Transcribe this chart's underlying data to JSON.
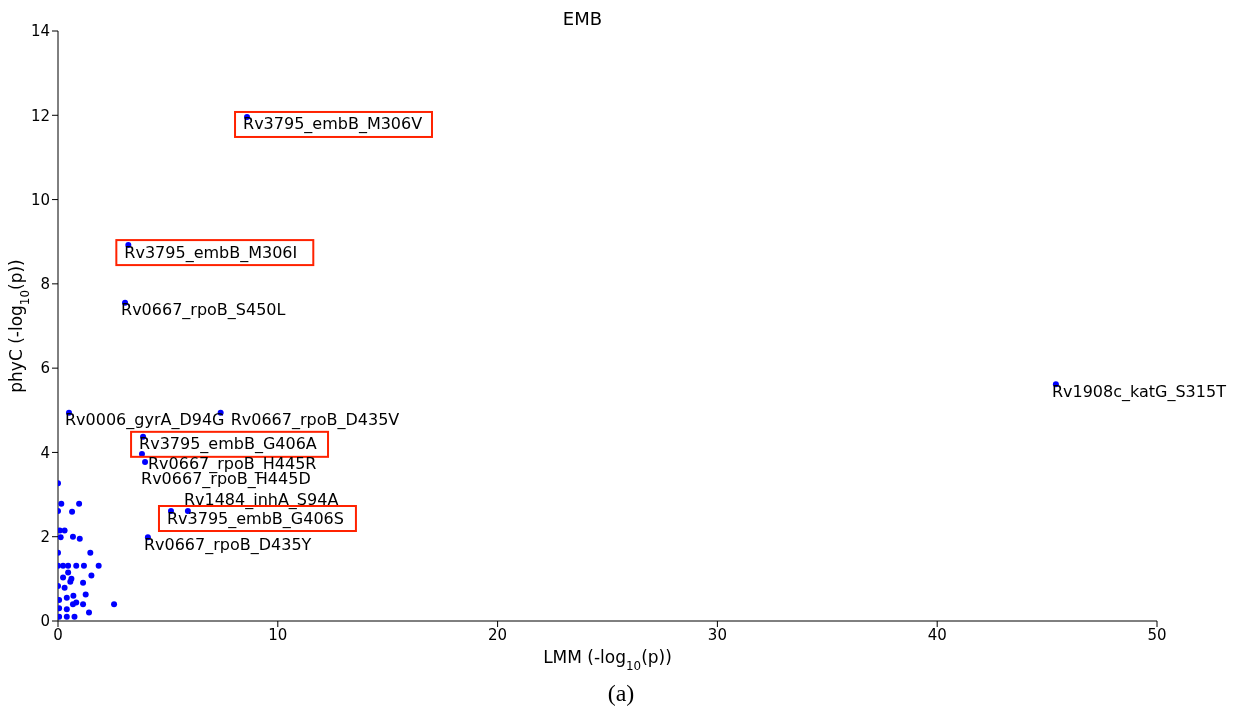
{
  "chart_data": {
    "type": "scatter",
    "title": "EMB",
    "xlabel": "LMM (-log$_{10}$(p))",
    "ylabel": "phyC (-log$_{10}$(p))",
    "xlim": [
      0,
      50
    ],
    "xticks": [
      0,
      10,
      20,
      30,
      40,
      50
    ],
    "ylim": [
      0,
      14
    ],
    "yticks": [
      0,
      2,
      4,
      6,
      8,
      10,
      12,
      14
    ],
    "grid": false,
    "legend": false,
    "marker": "circle",
    "series": [
      {
        "color": "#0000ff",
        "x": [
          8.6,
          3.2,
          3.05,
          0.5,
          7.4,
          3.87,
          3.82,
          3.96,
          5.91,
          5.14,
          4.09,
          45.4,
          0,
          0.15,
          0.96,
          0.64,
          0,
          0.08,
          0.3,
          0.12,
          0.68,
          0.99,
          0,
          1.47,
          0,
          0.23,
          0.46,
          0.83,
          1.18,
          1.85,
          0.46,
          1.52,
          0.23,
          0.61,
          0.56,
          1.14,
          0,
          0.3,
          1.26,
          2.55,
          0.68,
          1.14,
          0.83,
          1.41,
          0.05,
          0.4,
          0.75,
          0.05,
          0.4,
          0.05,
          0.4,
          0.7
        ],
        "values": [
          11.96,
          8.92,
          7.55,
          4.94,
          4.94,
          4.37,
          3.96,
          3.77,
          2.61,
          2.61,
          1.99,
          5.62,
          3.27,
          2.78,
          2.78,
          2.59,
          2.61,
          2.15,
          2.15,
          1.99,
          2.0,
          1.95,
          1.62,
          1.62,
          1.31,
          1.31,
          1.31,
          1.31,
          1.31,
          1.31,
          1.15,
          1.08,
          1.03,
          1.0,
          0.93,
          0.91,
          0.83,
          0.79,
          0.63,
          0.4,
          0.4,
          0.4,
          0.44,
          0.2,
          0.1,
          0.1,
          0.1,
          0.3,
          0.28,
          0.5,
          0.55,
          0.6
        ]
      }
    ],
    "annotations": [
      {
        "text": "Rv3795_embB_M306V",
        "x": 8.6,
        "y": 11.96
      },
      {
        "text": "Rv3795_embB_M306I",
        "x": 3.2,
        "y": 8.92
      },
      {
        "text": "Rv0667_rpoB_S450L",
        "x": 3.05,
        "y": 7.55
      },
      {
        "text": "Rv0006_gyrA_D94G",
        "x": 0.5,
        "y": 4.94
      },
      {
        "text": "Rv0667_rpoB_D435V",
        "x": 7.4,
        "y": 4.94
      },
      {
        "text": "Rv3795_embB_G406A",
        "x": 3.87,
        "y": 4.37
      },
      {
        "text": "Rv0667_rpoB_H445R",
        "x": 3.82,
        "y": 3.96
      },
      {
        "text": "Rv0667_rpoB_H445D",
        "x": 3.96,
        "y": 3.77
      },
      {
        "text": "Rv1484_inhA_S94A",
        "x": 5.91,
        "y": 2.61
      },
      {
        "text": "Rv3795_embB_G406S",
        "x": 5.14,
        "y": 2.61
      },
      {
        "text": "Rv0667_rpoB_D435Y",
        "x": 4.09,
        "y": 1.99
      },
      {
        "text": "Rv1908c_katG_S315T",
        "x": 45.4,
        "y": 5.62
      },
      "(a)"
    ]
  }
}
